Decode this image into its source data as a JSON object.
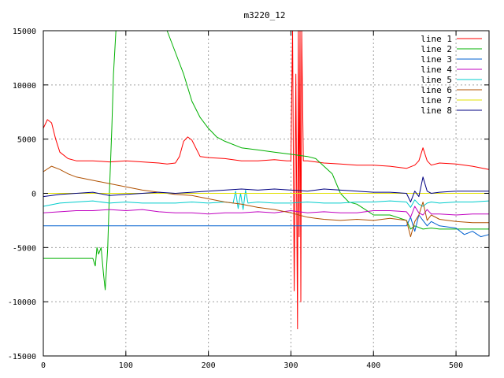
{
  "chart_data": {
    "type": "line",
    "title": "m3220_12",
    "xlabel": "",
    "ylabel": "",
    "xlim": [
      0,
      540
    ],
    "ylim": [
      -15000,
      15000
    ],
    "xticks": [
      0,
      100,
      200,
      300,
      400,
      500
    ],
    "yticks": [
      -15000,
      -10000,
      -5000,
      0,
      5000,
      10000,
      15000
    ],
    "grid": true,
    "legend_position": "top-right",
    "series": [
      {
        "name": "line 1",
        "color": "#ff0000",
        "x": [
          0,
          5,
          10,
          15,
          20,
          30,
          40,
          60,
          80,
          100,
          120,
          140,
          150,
          160,
          165,
          170,
          175,
          180,
          190,
          200,
          220,
          240,
          260,
          280,
          295,
          300,
          302,
          304,
          306,
          308,
          309,
          310,
          311,
          312,
          313,
          315,
          320,
          340,
          360,
          380,
          400,
          420,
          440,
          450,
          455,
          460,
          465,
          470,
          480,
          500,
          520,
          540
        ],
        "y": [
          6000,
          6800,
          6500,
          5000,
          3800,
          3200,
          3000,
          3000,
          2900,
          3000,
          2900,
          2800,
          2700,
          2800,
          3400,
          4800,
          5200,
          4900,
          3400,
          3300,
          3200,
          3000,
          3000,
          3100,
          3000,
          3000,
          15000,
          -9000,
          11000,
          -12500,
          15000,
          -4000,
          15000,
          -10000,
          15000,
          3000,
          3000,
          2800,
          2700,
          2600,
          2600,
          2500,
          2300,
          2600,
          3000,
          4200,
          3000,
          2600,
          2800,
          2700,
          2500,
          2200
        ]
      },
      {
        "name": "line 2",
        "color": "#00b000",
        "x": [
          0,
          20,
          40,
          60,
          63,
          65,
          67,
          70,
          73,
          75,
          78,
          80,
          83,
          85,
          88,
          90,
          150,
          160,
          170,
          180,
          190,
          200,
          210,
          220,
          240,
          260,
          280,
          300,
          320,
          330,
          340,
          350,
          360,
          370,
          380,
          390,
          400,
          420,
          440,
          445,
          450,
          460,
          470,
          480,
          500,
          520,
          540
        ],
        "y": [
          -6000,
          -6000,
          -6000,
          -6000,
          -6700,
          -5000,
          -5600,
          -5000,
          -7500,
          -8900,
          -5000,
          0,
          6000,
          11000,
          15000,
          15000,
          15000,
          13000,
          11000,
          8500,
          7000,
          6000,
          5200,
          4800,
          4200,
          4000,
          3800,
          3600,
          3400,
          3200,
          2500,
          1800,
          0,
          -800,
          -1000,
          -1500,
          -2000,
          -2000,
          -2500,
          -3300,
          -3000,
          -3300,
          -3200,
          -3300,
          -3300,
          -3300,
          -3300
        ]
      },
      {
        "name": "line 3",
        "color": "#0060d0",
        "x": [
          0,
          100,
          200,
          300,
          400,
          440,
          445,
          450,
          455,
          460,
          465,
          470,
          480,
          500,
          510,
          520,
          530,
          540
        ],
        "y": [
          -3000,
          -3000,
          -3000,
          -3000,
          -3000,
          -3000,
          -2200,
          -3500,
          -2000,
          -2500,
          -3000,
          -2600,
          -3000,
          -3200,
          -3800,
          -3500,
          -4000,
          -3800
        ]
      },
      {
        "name": "line 4",
        "color": "#c000c0",
        "x": [
          0,
          20,
          40,
          60,
          80,
          100,
          120,
          140,
          160,
          180,
          200,
          220,
          240,
          260,
          280,
          300,
          320,
          340,
          360,
          380,
          400,
          420,
          440,
          445,
          450,
          455,
          460,
          465,
          470,
          480,
          500,
          520,
          540
        ],
        "y": [
          -1800,
          -1700,
          -1600,
          -1600,
          -1500,
          -1600,
          -1500,
          -1700,
          -1800,
          -1800,
          -1900,
          -1800,
          -1800,
          -1700,
          -1800,
          -1600,
          -1800,
          -1700,
          -1800,
          -1800,
          -1600,
          -1600,
          -1700,
          -2200,
          -1200,
          -1800,
          -2000,
          -1500,
          -1900,
          -1900,
          -2000,
          -1900,
          -1900
        ]
      },
      {
        "name": "line 5",
        "color": "#00cccc",
        "x": [
          0,
          20,
          40,
          60,
          80,
          100,
          120,
          140,
          160,
          180,
          200,
          220,
          230,
          233,
          236,
          239,
          242,
          245,
          248,
          260,
          280,
          300,
          320,
          340,
          360,
          380,
          400,
          420,
          440,
          445,
          450,
          455,
          460,
          465,
          470,
          480,
          500,
          520,
          540
        ],
        "y": [
          -1200,
          -900,
          -800,
          -700,
          -900,
          -800,
          -900,
          -900,
          -900,
          -800,
          -900,
          -800,
          -900,
          200,
          -1400,
          0,
          -1500,
          300,
          -900,
          -800,
          -900,
          -900,
          -800,
          -900,
          -900,
          -800,
          -800,
          -700,
          -800,
          -1300,
          -600,
          -1000,
          -1200,
          -900,
          -800,
          -900,
          -800,
          -800,
          -700
        ]
      },
      {
        "name": "line 6",
        "color": "#b05000",
        "x": [
          0,
          10,
          20,
          30,
          40,
          60,
          80,
          100,
          120,
          140,
          160,
          180,
          200,
          220,
          240,
          260,
          280,
          300,
          320,
          330,
          340,
          360,
          380,
          400,
          420,
          440,
          445,
          450,
          455,
          460,
          465,
          470,
          480,
          500,
          520,
          540
        ],
        "y": [
          2000,
          2500,
          2200,
          1800,
          1500,
          1200,
          900,
          600,
          300,
          100,
          -100,
          -200,
          -500,
          -800,
          -1000,
          -1300,
          -1500,
          -1800,
          -2200,
          -2300,
          -2400,
          -2500,
          -2400,
          -2500,
          -2300,
          -2500,
          -4000,
          -2600,
          -2000,
          -800,
          -2500,
          -2000,
          -2400,
          -2600,
          -2700,
          -2700
        ]
      },
      {
        "name": "line 7",
        "color": "#e0e000",
        "x": [
          0,
          100,
          200,
          300,
          400,
          500,
          540
        ],
        "y": [
          0,
          0,
          0,
          0,
          0,
          0,
          0
        ]
      },
      {
        "name": "line 8",
        "color": "#000080",
        "x": [
          0,
          20,
          40,
          60,
          80,
          100,
          120,
          140,
          160,
          180,
          200,
          220,
          240,
          260,
          280,
          300,
          320,
          340,
          360,
          380,
          400,
          420,
          440,
          445,
          450,
          455,
          460,
          465,
          470,
          480,
          500,
          520,
          540
        ],
        "y": [
          -300,
          -100,
          0,
          100,
          -200,
          -100,
          0,
          100,
          0,
          100,
          200,
          300,
          400,
          300,
          400,
          300,
          200,
          400,
          300,
          200,
          100,
          100,
          0,
          -800,
          200,
          -300,
          1500,
          200,
          0,
          100,
          200,
          200,
          200
        ]
      }
    ]
  }
}
